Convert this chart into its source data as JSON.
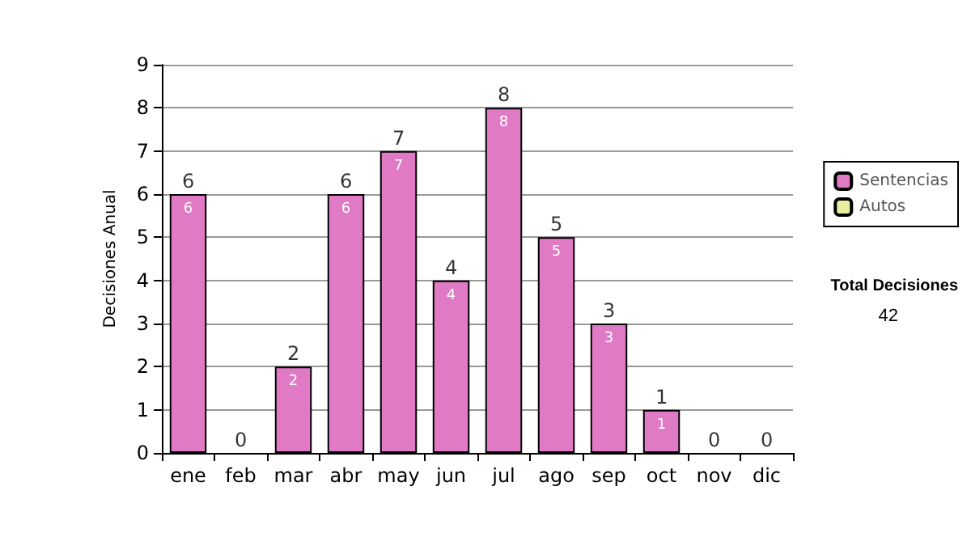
{
  "chart_data": {
    "type": "bar",
    "ylabel": "Decisiones Anual",
    "categories": [
      "ene",
      "feb",
      "mar",
      "abr",
      "may",
      "jun",
      "jul",
      "ago",
      "sep",
      "oct",
      "nov",
      "dic"
    ],
    "stacked": true,
    "series": [
      {
        "name": "Sentencias",
        "color": "#e07ac4",
        "values": [
          6,
          0,
          2,
          6,
          7,
          4,
          8,
          5,
          3,
          1,
          0,
          0
        ],
        "value_labels": [
          "6",
          null,
          "2",
          "6",
          "7",
          "4",
          "8",
          "5",
          "3",
          "1",
          null,
          null
        ]
      },
      {
        "name": "Autos",
        "color": "#e8f0a0",
        "values": [
          0,
          0,
          0,
          0,
          0,
          0,
          0,
          0,
          0,
          0,
          0,
          0
        ]
      }
    ],
    "totals": [
      "6",
      "0",
      "2",
      "6",
      "7",
      "4",
      "8",
      "5",
      "3",
      "1",
      "0",
      "0"
    ],
    "ylim": [
      0,
      9
    ],
    "yticks": [
      0,
      1,
      2,
      3,
      4,
      5,
      6,
      7,
      8,
      9
    ],
    "grid": "y",
    "legend": "right",
    "annotations": [
      "Total Decisiones",
      "42"
    ]
  }
}
